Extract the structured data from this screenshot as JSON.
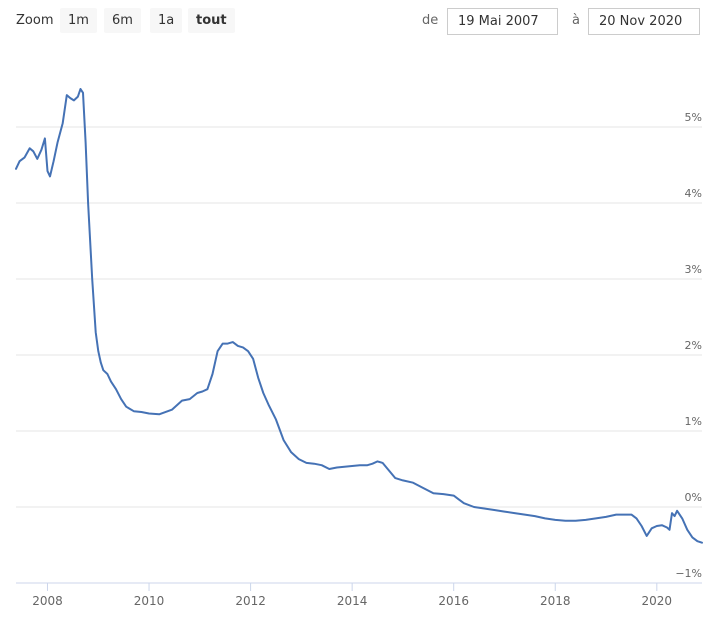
{
  "toolbar": {
    "zoom_label": "Zoom",
    "buttons": [
      "1m",
      "6m",
      "1a",
      "tout"
    ],
    "active_button": "tout",
    "from_label": "de",
    "from_value": "19 Mai 2007",
    "to_label": "à",
    "to_value": "20 Nov 2020"
  },
  "chart_data": {
    "type": "line",
    "title": "",
    "xlabel": "",
    "ylabel": "",
    "x_ticks": [
      "2008",
      "2010",
      "2012",
      "2014",
      "2016",
      "2018",
      "2020"
    ],
    "y_ticks": [
      "−1%",
      "0%",
      "1%",
      "2%",
      "3%",
      "4%",
      "5%"
    ],
    "y_tick_values": [
      -1,
      0,
      1,
      2,
      3,
      4,
      5
    ],
    "xlim": [
      2007.38,
      2020.89
    ],
    "ylim": [
      -1.0,
      6.0
    ],
    "grid": true,
    "line_color": "#4572b5",
    "series": [
      {
        "x": [
          2007.38,
          2007.45,
          2007.55,
          2007.65,
          2007.72,
          2007.8,
          2007.88,
          2007.95,
          2008.0,
          2008.05,
          2008.12,
          2008.2,
          2008.3,
          2008.38,
          2008.45,
          2008.52,
          2008.6,
          2008.65,
          2008.7,
          2008.75,
          2008.8,
          2008.88,
          2008.95,
          2009.0,
          2009.05,
          2009.1,
          2009.18,
          2009.25,
          2009.35,
          2009.45,
          2009.55,
          2009.7,
          2009.85,
          2010.0,
          2010.2,
          2010.45,
          2010.65,
          2010.8,
          2010.95,
          2011.05,
          2011.15,
          2011.25,
          2011.35,
          2011.45,
          2011.55,
          2011.65,
          2011.75,
          2011.85,
          2011.95,
          2012.05,
          2012.15,
          2012.25,
          2012.35,
          2012.5,
          2012.65,
          2012.8,
          2012.95,
          2013.1,
          2013.25,
          2013.4,
          2013.55,
          2013.7,
          2013.85,
          2014.0,
          2014.15,
          2014.3,
          2014.4,
          2014.5,
          2014.6,
          2014.7,
          2014.85,
          2015.0,
          2015.2,
          2015.4,
          2015.6,
          2015.8,
          2016.0,
          2016.1,
          2016.2,
          2016.4,
          2016.6,
          2016.8,
          2017.0,
          2017.2,
          2017.4,
          2017.6,
          2017.8,
          2018.0,
          2018.2,
          2018.4,
          2018.6,
          2018.8,
          2019.0,
          2019.2,
          2019.4,
          2019.5,
          2019.6,
          2019.7,
          2019.8,
          2019.9,
          2020.0,
          2020.1,
          2020.2,
          2020.25,
          2020.3,
          2020.35,
          2020.4,
          2020.5,
          2020.6,
          2020.7,
          2020.8,
          2020.89
        ],
        "y": [
          4.45,
          4.55,
          4.6,
          4.72,
          4.68,
          4.58,
          4.7,
          4.85,
          4.42,
          4.35,
          4.55,
          4.8,
          5.05,
          5.42,
          5.38,
          5.35,
          5.4,
          5.5,
          5.45,
          4.8,
          4.0,
          3.0,
          2.3,
          2.05,
          1.9,
          1.8,
          1.75,
          1.65,
          1.55,
          1.42,
          1.32,
          1.26,
          1.25,
          1.23,
          1.22,
          1.28,
          1.4,
          1.42,
          1.5,
          1.52,
          1.55,
          1.75,
          2.05,
          2.15,
          2.15,
          2.17,
          2.12,
          2.1,
          2.05,
          1.95,
          1.7,
          1.5,
          1.35,
          1.15,
          0.88,
          0.72,
          0.63,
          0.58,
          0.57,
          0.55,
          0.5,
          0.52,
          0.53,
          0.54,
          0.55,
          0.55,
          0.57,
          0.6,
          0.58,
          0.5,
          0.38,
          0.35,
          0.32,
          0.25,
          0.18,
          0.17,
          0.15,
          0.1,
          0.05,
          0.0,
          -0.02,
          -0.04,
          -0.06,
          -0.08,
          -0.1,
          -0.12,
          -0.15,
          -0.17,
          -0.18,
          -0.18,
          -0.17,
          -0.15,
          -0.13,
          -0.1,
          -0.1,
          -0.1,
          -0.15,
          -0.25,
          -0.38,
          -0.28,
          -0.25,
          -0.24,
          -0.27,
          -0.3,
          -0.08,
          -0.12,
          -0.05,
          -0.15,
          -0.3,
          -0.4,
          -0.45,
          -0.47
        ]
      }
    ]
  }
}
